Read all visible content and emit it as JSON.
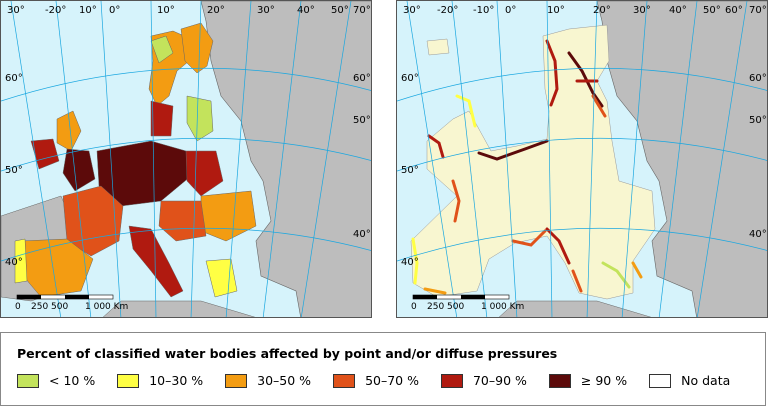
{
  "maps": [
    {
      "id": "left",
      "lon_labels": [
        "30°",
        "-20°",
        "10°",
        "0°",
        "10°",
        "20°",
        "30°",
        "40°",
        "50°",
        "70°"
      ],
      "lat_labels": [
        "60°",
        "50°",
        "60°",
        "50°",
        "40°",
        "40°"
      ],
      "scale_labels": [
        "0",
        "250",
        "500",
        "1 000 Km"
      ]
    },
    {
      "id": "right",
      "lon_labels": [
        "30°",
        "-20°",
        "-10°",
        "0°",
        "10°",
        "20°",
        "30°",
        "40°",
        "50°",
        "60°",
        "70°"
      ],
      "lat_labels": [
        "60°",
        "50°",
        "60°",
        "50°",
        "40°",
        "40°"
      ],
      "scale_labels": [
        "0",
        "250",
        "500",
        "1 000 Km"
      ]
    }
  ],
  "legend": {
    "title": "Percent of classified water bodies affected by point and/or diffuse pressures",
    "items": [
      {
        "label": "< 10 %",
        "color": "#c3e35c"
      },
      {
        "label": "10–30 %",
        "color": "#ffff44"
      },
      {
        "label": "30–50 %",
        "color": "#f39c12"
      },
      {
        "label": "50–70 %",
        "color": "#e0521a"
      },
      {
        "label": "70–90 %",
        "color": "#b01a10"
      },
      {
        "label": "≥ 90 %",
        "color": "#5c0a0a"
      },
      {
        "label": "No data",
        "color": "#ffffff"
      }
    ]
  },
  "colors": {
    "sea": "#d6f3fb",
    "non_eu_land": "#bdbdbd",
    "coastal_base": "#f8f6d0",
    "graticule": "#1aa7e0",
    "border": "#666666"
  }
}
